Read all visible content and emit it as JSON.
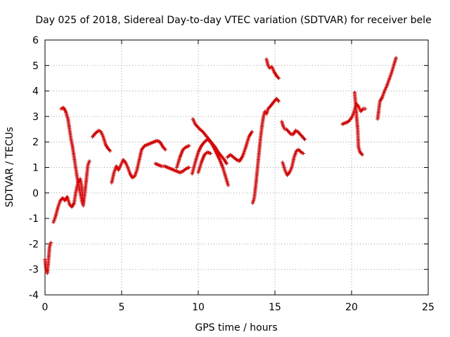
{
  "chart_data": {
    "type": "scatter",
    "title": "Day 025 of 2018, Sidereal Day-to-day VTEC variation (SDTVAR) for receiver bele",
    "xlabel": "GPS time / hours",
    "ylabel": "SDTVAR / TECUs",
    "xlim": [
      0,
      25
    ],
    "ylim": [
      -4,
      6
    ],
    "xticks": [
      "0",
      "5",
      "10",
      "15",
      "20",
      "25"
    ],
    "yticks": [
      "-4",
      "-3",
      "-2",
      "-1",
      "0",
      "1",
      "2",
      "3",
      "4",
      "5",
      "6"
    ],
    "grid": true,
    "marker": "+",
    "color": "#e00000",
    "series": [
      {
        "name": "SDTVAR",
        "segments": [
          [
            [
              0.0,
              -2.6
            ],
            [
              0.08,
              -3.0
            ],
            [
              0.15,
              -3.15
            ],
            [
              0.22,
              -2.7
            ],
            [
              0.3,
              -2.1
            ],
            [
              0.38,
              -1.95
            ]
          ],
          [
            [
              0.55,
              -1.15
            ],
            [
              0.7,
              -0.9
            ],
            [
              0.85,
              -0.55
            ],
            [
              1.0,
              -0.3
            ],
            [
              1.15,
              -0.2
            ],
            [
              1.3,
              -0.3
            ],
            [
              1.45,
              -0.15
            ],
            [
              1.6,
              -0.45
            ],
            [
              1.75,
              -0.55
            ],
            [
              1.9,
              -0.4
            ],
            [
              2.0,
              0.0
            ],
            [
              2.15,
              0.4
            ],
            [
              2.3,
              0.55
            ],
            [
              2.4,
              0.2
            ],
            [
              2.5,
              -0.45
            ],
            [
              2.6,
              0.0
            ],
            [
              2.7,
              0.55
            ],
            [
              2.8,
              1.1
            ],
            [
              2.9,
              1.25
            ]
          ],
          [
            [
              1.05,
              3.3
            ],
            [
              1.2,
              3.35
            ],
            [
              1.35,
              3.2
            ],
            [
              1.5,
              2.9
            ],
            [
              1.6,
              2.5
            ],
            [
              1.7,
              2.1
            ],
            [
              1.8,
              1.8
            ],
            [
              1.9,
              1.4
            ],
            [
              2.0,
              1.0
            ],
            [
              2.1,
              0.6
            ],
            [
              2.2,
              0.3
            ],
            [
              2.3,
              0.0
            ],
            [
              2.4,
              -0.3
            ],
            [
              2.5,
              -0.5
            ]
          ],
          [
            [
              3.1,
              2.2
            ],
            [
              3.3,
              2.35
            ],
            [
              3.5,
              2.45
            ],
            [
              3.65,
              2.4
            ],
            [
              3.8,
              2.2
            ],
            [
              3.95,
              1.9
            ],
            [
              4.1,
              1.75
            ],
            [
              4.25,
              1.65
            ]
          ],
          [
            [
              4.35,
              0.4
            ],
            [
              4.5,
              0.8
            ],
            [
              4.65,
              1.05
            ],
            [
              4.8,
              0.9
            ],
            [
              4.95,
              1.1
            ],
            [
              5.1,
              1.3
            ],
            [
              5.25,
              1.2
            ],
            [
              5.4,
              1.0
            ],
            [
              5.55,
              0.75
            ],
            [
              5.7,
              0.6
            ],
            [
              5.85,
              0.65
            ],
            [
              6.0,
              0.9
            ],
            [
              6.15,
              1.3
            ],
            [
              6.3,
              1.7
            ],
            [
              6.5,
              1.85
            ],
            [
              6.7,
              1.9
            ],
            [
              6.9,
              1.95
            ],
            [
              7.1,
              2.0
            ],
            [
              7.3,
              2.05
            ],
            [
              7.5,
              2.0
            ],
            [
              7.7,
              1.8
            ],
            [
              7.85,
              1.7
            ]
          ],
          [
            [
              7.2,
              1.15
            ],
            [
              7.4,
              1.1
            ],
            [
              7.6,
              1.05
            ],
            [
              7.8,
              1.05
            ],
            [
              8.0,
              1.0
            ],
            [
              8.2,
              0.95
            ],
            [
              8.4,
              0.9
            ],
            [
              8.6,
              0.85
            ],
            [
              8.8,
              0.8
            ],
            [
              9.0,
              0.85
            ],
            [
              9.2,
              0.95
            ],
            [
              9.4,
              1.0
            ]
          ],
          [
            [
              8.6,
              1.0
            ],
            [
              8.8,
              1.4
            ],
            [
              9.0,
              1.7
            ],
            [
              9.2,
              1.8
            ],
            [
              9.4,
              1.85
            ]
          ],
          [
            [
              9.6,
              0.75
            ],
            [
              9.8,
              1.2
            ],
            [
              10.0,
              1.6
            ],
            [
              10.2,
              1.85
            ],
            [
              10.4,
              2.0
            ],
            [
              10.6,
              2.1
            ],
            [
              10.8,
              2.0
            ],
            [
              11.0,
              1.8
            ],
            [
              11.2,
              1.55
            ],
            [
              11.4,
              1.3
            ],
            [
              11.6,
              1.0
            ],
            [
              11.8,
              0.6
            ],
            [
              11.95,
              0.3
            ]
          ],
          [
            [
              9.65,
              2.9
            ],
            [
              9.8,
              2.7
            ],
            [
              9.95,
              2.6
            ],
            [
              10.1,
              2.5
            ],
            [
              10.3,
              2.4
            ],
            [
              10.5,
              2.25
            ],
            [
              10.7,
              2.1
            ],
            [
              10.9,
              1.95
            ],
            [
              11.1,
              1.8
            ],
            [
              11.3,
              1.6
            ],
            [
              11.5,
              1.45
            ],
            [
              11.7,
              1.3
            ],
            [
              11.85,
              1.15
            ]
          ],
          [
            [
              10.0,
              0.8
            ],
            [
              10.2,
              1.2
            ],
            [
              10.4,
              1.5
            ],
            [
              10.6,
              1.6
            ],
            [
              10.8,
              1.55
            ]
          ],
          [
            [
              11.9,
              1.4
            ],
            [
              12.1,
              1.5
            ],
            [
              12.3,
              1.4
            ],
            [
              12.5,
              1.3
            ],
            [
              12.7,
              1.25
            ],
            [
              12.9,
              1.45
            ],
            [
              13.1,
              1.8
            ],
            [
              13.3,
              2.2
            ],
            [
              13.5,
              2.4
            ]
          ],
          [
            [
              13.55,
              -0.4
            ],
            [
              13.65,
              -0.2
            ],
            [
              13.75,
              0.3
            ],
            [
              13.85,
              0.9
            ],
            [
              13.95,
              1.5
            ],
            [
              14.05,
              2.1
            ],
            [
              14.15,
              2.6
            ],
            [
              14.25,
              3.0
            ],
            [
              14.35,
              3.2
            ],
            [
              14.45,
              3.1
            ],
            [
              14.55,
              3.3
            ],
            [
              14.7,
              3.4
            ],
            [
              14.9,
              3.55
            ],
            [
              15.1,
              3.7
            ],
            [
              15.25,
              3.6
            ]
          ],
          [
            [
              14.45,
              5.25
            ],
            [
              14.55,
              5.0
            ],
            [
              14.65,
              4.9
            ],
            [
              14.8,
              4.95
            ],
            [
              14.95,
              4.75
            ],
            [
              15.1,
              4.6
            ],
            [
              15.25,
              4.5
            ]
          ],
          [
            [
              15.45,
              2.8
            ],
            [
              15.55,
              2.6
            ],
            [
              15.65,
              2.5
            ],
            [
              15.75,
              2.5
            ],
            [
              15.9,
              2.4
            ],
            [
              16.05,
              2.3
            ],
            [
              16.2,
              2.3
            ],
            [
              16.35,
              2.45
            ],
            [
              16.5,
              2.4
            ],
            [
              16.65,
              2.3
            ],
            [
              16.8,
              2.2
            ],
            [
              16.95,
              2.1
            ]
          ],
          [
            [
              15.5,
              1.2
            ],
            [
              15.65,
              0.9
            ],
            [
              15.8,
              0.7
            ],
            [
              15.95,
              0.8
            ],
            [
              16.1,
              1.0
            ],
            [
              16.25,
              1.4
            ],
            [
              16.4,
              1.65
            ],
            [
              16.55,
              1.7
            ],
            [
              16.7,
              1.6
            ],
            [
              16.85,
              1.55
            ]
          ],
          [
            [
              19.4,
              2.7
            ],
            [
              19.6,
              2.75
            ],
            [
              19.8,
              2.8
            ],
            [
              20.0,
              2.95
            ],
            [
              20.15,
              3.15
            ],
            [
              20.3,
              3.5
            ],
            [
              20.45,
              3.4
            ],
            [
              20.6,
              3.2
            ],
            [
              20.75,
              3.3
            ],
            [
              20.9,
              3.3
            ]
          ],
          [
            [
              20.2,
              3.95
            ],
            [
              20.3,
              3.2
            ],
            [
              20.4,
              2.5
            ],
            [
              20.45,
              1.8
            ],
            [
              20.55,
              1.6
            ],
            [
              20.7,
              1.5
            ]
          ],
          [
            [
              21.7,
              2.9
            ],
            [
              21.85,
              3.6
            ],
            [
              22.0,
              3.75
            ],
            [
              22.15,
              4.0
            ],
            [
              22.3,
              4.2
            ],
            [
              22.45,
              4.45
            ],
            [
              22.6,
              4.7
            ],
            [
              22.75,
              5.0
            ],
            [
              22.9,
              5.3
            ]
          ]
        ]
      }
    ]
  }
}
